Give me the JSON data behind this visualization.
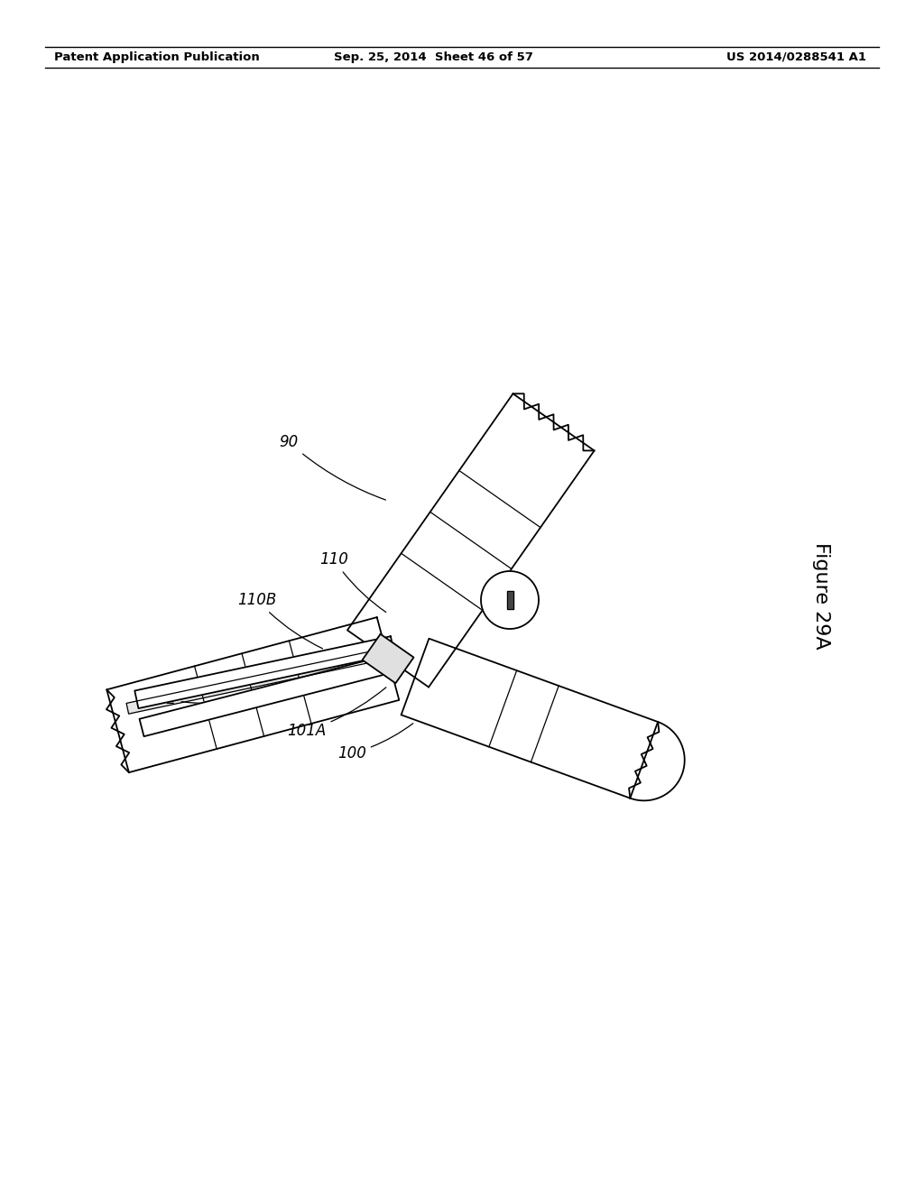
{
  "header_left": "Patent Application Publication",
  "header_mid": "Sep. 25, 2014  Sheet 46 of 57",
  "header_right": "US 2014/0288541 A1",
  "figure_label": "Figure 29A",
  "bg_color": "#ffffff",
  "line_color": "#000000",
  "label_color": "#000000"
}
